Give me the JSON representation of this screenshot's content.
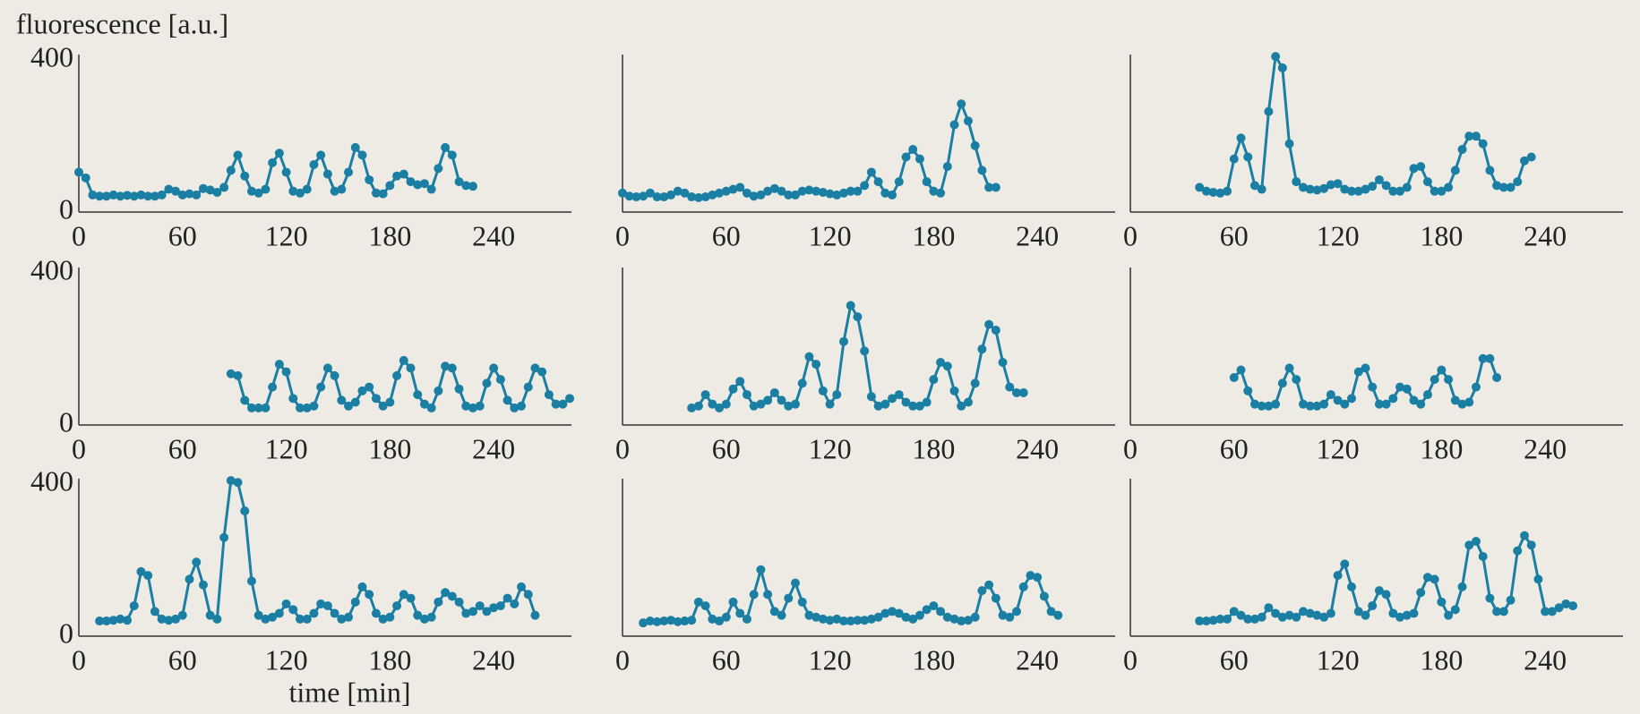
{
  "chart_data": [
    {
      "type": "line",
      "ylabel": "fluorescence [a.u.]",
      "color": "#1a7fa3",
      "xlim": [
        0,
        285
      ],
      "ylim": [
        0,
        415
      ],
      "xticks": [
        0,
        60,
        120,
        180,
        240
      ],
      "yticks": [
        0,
        400
      ],
      "x": [
        0,
        4,
        8,
        12,
        16,
        20,
        24,
        28,
        32,
        36,
        40,
        44,
        48,
        52,
        56,
        60,
        64,
        68,
        72,
        76,
        80,
        84,
        88,
        92,
        96,
        100,
        104,
        108,
        112,
        116,
        120,
        124,
        128,
        132,
        136,
        140,
        144,
        148,
        152,
        156,
        160,
        164,
        168,
        172,
        176,
        180,
        184,
        188,
        192,
        196,
        200,
        204,
        208,
        212,
        216,
        220,
        224,
        228
      ],
      "values": [
        105,
        90,
        45,
        42,
        42,
        45,
        42,
        44,
        42,
        45,
        42,
        42,
        45,
        60,
        55,
        45,
        48,
        45,
        62,
        58,
        52,
        65,
        110,
        150,
        95,
        55,
        50,
        60,
        130,
        155,
        105,
        55,
        50,
        60,
        125,
        150,
        100,
        55,
        60,
        105,
        170,
        150,
        85,
        50,
        48,
        70,
        95,
        100,
        80,
        72,
        75,
        60,
        115,
        170,
        150,
        80,
        70,
        68
      ]
    },
    {
      "type": "line",
      "color": "#1a7fa3",
      "xlim": [
        0,
        285
      ],
      "ylim": [
        0,
        415
      ],
      "xticks": [
        0,
        60,
        120,
        180,
        240
      ],
      "x": [
        0,
        4,
        8,
        12,
        16,
        20,
        24,
        28,
        32,
        36,
        40,
        44,
        48,
        52,
        56,
        60,
        64,
        68,
        72,
        76,
        80,
        84,
        88,
        92,
        96,
        100,
        104,
        108,
        112,
        116,
        120,
        124,
        128,
        132,
        136,
        140,
        144,
        148,
        152,
        156,
        160,
        164,
        168,
        172,
        176,
        180,
        184,
        188,
        192,
        196,
        200,
        204,
        208,
        212,
        216
      ],
      "values": [
        50,
        42,
        40,
        42,
        50,
        40,
        40,
        45,
        55,
        50,
        40,
        38,
        40,
        45,
        50,
        55,
        60,
        65,
        50,
        42,
        45,
        55,
        62,
        55,
        45,
        45,
        55,
        58,
        55,
        52,
        48,
        45,
        50,
        55,
        55,
        70,
        105,
        80,
        50,
        45,
        80,
        145,
        165,
        140,
        80,
        55,
        50,
        120,
        230,
        285,
        240,
        175,
        110,
        65,
        65
      ]
    },
    {
      "type": "line",
      "color": "#1a7fa3",
      "xlim": [
        0,
        285
      ],
      "ylim": [
        0,
        415
      ],
      "xticks": [
        0,
        60,
        120,
        180,
        240
      ],
      "x": [
        40,
        44,
        48,
        52,
        56,
        60,
        64,
        68,
        72,
        76,
        80,
        84,
        88,
        92,
        96,
        100,
        104,
        108,
        112,
        116,
        120,
        124,
        128,
        132,
        136,
        140,
        144,
        148,
        152,
        156,
        160,
        164,
        168,
        172,
        176,
        180,
        184,
        188,
        192,
        196,
        200,
        204,
        208,
        212,
        216,
        220,
        224,
        228,
        232
      ],
      "values": [
        65,
        55,
        52,
        50,
        55,
        140,
        195,
        145,
        70,
        60,
        265,
        410,
        380,
        180,
        80,
        65,
        60,
        58,
        62,
        72,
        75,
        60,
        55,
        55,
        60,
        68,
        85,
        70,
        55,
        55,
        65,
        115,
        120,
        80,
        55,
        55,
        65,
        110,
        165,
        200,
        200,
        180,
        110,
        70,
        65,
        65,
        80,
        135,
        145
      ]
    },
    {
      "type": "line",
      "color": "#1a7fa3",
      "xlim": [
        0,
        285
      ],
      "ylim": [
        0,
        415
      ],
      "xticks": [
        0,
        60,
        120,
        180,
        240
      ],
      "yticks": [
        0,
        400
      ],
      "x": [
        88,
        92,
        96,
        100,
        104,
        108,
        112,
        116,
        120,
        124,
        128,
        132,
        136,
        140,
        144,
        148,
        152,
        156,
        160,
        164,
        168,
        172,
        176,
        180,
        184,
        188,
        192,
        196,
        200,
        204,
        208,
        212,
        216,
        220,
        224,
        228,
        232,
        236,
        240,
        244,
        248,
        252,
        256,
        260,
        264,
        268,
        272,
        276,
        280,
        284
      ],
      "values": [
        135,
        130,
        65,
        45,
        45,
        45,
        100,
        160,
        140,
        70,
        45,
        45,
        50,
        100,
        150,
        130,
        65,
        50,
        60,
        90,
        100,
        70,
        50,
        60,
        130,
        170,
        150,
        80,
        55,
        45,
        90,
        155,
        150,
        95,
        50,
        45,
        50,
        110,
        150,
        120,
        65,
        45,
        50,
        100,
        150,
        140,
        80,
        55,
        55,
        70
      ]
    },
    {
      "type": "line",
      "color": "#1a7fa3",
      "xlim": [
        0,
        285
      ],
      "ylim": [
        0,
        415
      ],
      "xticks": [
        0,
        60,
        120,
        180,
        240
      ],
      "x": [
        40,
        44,
        48,
        52,
        56,
        60,
        64,
        68,
        72,
        76,
        80,
        84,
        88,
        92,
        96,
        100,
        104,
        108,
        112,
        116,
        120,
        124,
        128,
        132,
        136,
        140,
        144,
        148,
        152,
        156,
        160,
        164,
        168,
        172,
        176,
        180,
        184,
        188,
        192,
        196,
        200,
        204,
        208,
        212,
        216,
        220,
        224,
        228,
        232
      ],
      "values": [
        45,
        50,
        80,
        55,
        45,
        55,
        95,
        115,
        80,
        50,
        55,
        65,
        85,
        65,
        50,
        55,
        110,
        180,
        160,
        90,
        55,
        80,
        220,
        315,
        285,
        195,
        75,
        50,
        55,
        70,
        80,
        60,
        50,
        50,
        60,
        120,
        165,
        155,
        90,
        50,
        60,
        110,
        200,
        265,
        250,
        165,
        100,
        85,
        85
      ]
    },
    {
      "type": "line",
      "color": "#1a7fa3",
      "xlim": [
        0,
        285
      ],
      "ylim": [
        0,
        415
      ],
      "xticks": [
        0,
        60,
        120,
        180,
        240
      ],
      "x": [
        60,
        64,
        68,
        72,
        76,
        80,
        84,
        88,
        92,
        96,
        100,
        104,
        108,
        112,
        116,
        120,
        124,
        128,
        132,
        136,
        140,
        144,
        148,
        152,
        156,
        160,
        164,
        168,
        172,
        176,
        180,
        184,
        188,
        192,
        196,
        200,
        204,
        208,
        212
      ],
      "values": [
        125,
        145,
        90,
        55,
        50,
        50,
        55,
        110,
        150,
        120,
        55,
        50,
        50,
        55,
        80,
        65,
        55,
        70,
        140,
        150,
        100,
        55,
        55,
        70,
        100,
        95,
        65,
        55,
        80,
        120,
        145,
        120,
        65,
        55,
        60,
        100,
        175,
        175,
        125
      ]
    },
    {
      "type": "line",
      "xlabel": "time [min]",
      "color": "#1a7fa3",
      "xlim": [
        0,
        285
      ],
      "ylim": [
        0,
        415
      ],
      "xticks": [
        0,
        60,
        120,
        180,
        240
      ],
      "yticks": [
        0,
        400
      ],
      "x": [
        12,
        16,
        20,
        24,
        28,
        32,
        36,
        40,
        44,
        48,
        52,
        56,
        60,
        64,
        68,
        72,
        76,
        80,
        84,
        88,
        92,
        96,
        100,
        104,
        108,
        112,
        116,
        120,
        124,
        128,
        132,
        136,
        140,
        144,
        148,
        152,
        156,
        160,
        164,
        168,
        172,
        176,
        180,
        184,
        188,
        192,
        196,
        200,
        204,
        208,
        212,
        216,
        220,
        224,
        228,
        232,
        236,
        240,
        244,
        248,
        252,
        256,
        260,
        264
      ],
      "values": [
        40,
        40,
        42,
        45,
        42,
        80,
        170,
        160,
        65,
        45,
        42,
        45,
        55,
        150,
        195,
        135,
        55,
        45,
        260,
        410,
        405,
        330,
        145,
        55,
        45,
        50,
        60,
        85,
        70,
        45,
        45,
        60,
        85,
        80,
        60,
        45,
        50,
        90,
        130,
        110,
        60,
        45,
        50,
        80,
        110,
        100,
        55,
        45,
        50,
        90,
        115,
        105,
        90,
        60,
        65,
        80,
        65,
        75,
        80,
        100,
        85,
        130,
        110,
        55
      ]
    },
    {
      "type": "line",
      "color": "#1a7fa3",
      "xlim": [
        0,
        285
      ],
      "ylim": [
        0,
        415
      ],
      "xticks": [
        0,
        60,
        120,
        180,
        240
      ],
      "x": [
        12,
        16,
        20,
        24,
        28,
        32,
        36,
        40,
        44,
        48,
        52,
        56,
        60,
        64,
        68,
        72,
        76,
        80,
        84,
        88,
        92,
        96,
        100,
        104,
        108,
        112,
        116,
        120,
        124,
        128,
        132,
        136,
        140,
        144,
        148,
        152,
        156,
        160,
        164,
        168,
        172,
        176,
        180,
        184,
        188,
        192,
        196,
        200,
        204,
        208,
        212,
        216,
        220,
        224,
        228,
        232,
        236,
        240,
        244,
        248,
        252
      ],
      "values": [
        35,
        40,
        38,
        40,
        42,
        38,
        40,
        42,
        90,
        80,
        45,
        40,
        50,
        90,
        60,
        45,
        110,
        175,
        110,
        65,
        55,
        100,
        140,
        90,
        55,
        50,
        45,
        42,
        45,
        40,
        40,
        42,
        42,
        45,
        50,
        60,
        65,
        60,
        50,
        45,
        55,
        70,
        80,
        65,
        50,
        45,
        40,
        42,
        50,
        120,
        135,
        100,
        55,
        50,
        65,
        130,
        160,
        155,
        105,
        65,
        55
      ]
    },
    {
      "type": "line",
      "color": "#1a7fa3",
      "xlim": [
        0,
        285
      ],
      "ylim": [
        0,
        415
      ],
      "xticks": [
        0,
        60,
        120,
        180,
        240
      ],
      "x": [
        40,
        44,
        48,
        52,
        56,
        60,
        64,
        68,
        72,
        76,
        80,
        84,
        88,
        92,
        96,
        100,
        104,
        108,
        112,
        116,
        120,
        124,
        128,
        132,
        136,
        140,
        144,
        148,
        152,
        156,
        160,
        164,
        168,
        172,
        176,
        180,
        184,
        188,
        192,
        196,
        200,
        204,
        208,
        212,
        216,
        220,
        224,
        228,
        232,
        236,
        240,
        244,
        248,
        252,
        256
      ],
      "values": [
        40,
        40,
        42,
        45,
        45,
        65,
        55,
        45,
        45,
        50,
        75,
        60,
        50,
        55,
        50,
        65,
        60,
        55,
        50,
        60,
        160,
        190,
        130,
        65,
        55,
        80,
        120,
        110,
        60,
        50,
        55,
        60,
        115,
        155,
        150,
        90,
        55,
        70,
        130,
        240,
        250,
        210,
        100,
        65,
        65,
        95,
        225,
        265,
        240,
        150,
        65,
        65,
        75,
        85,
        80
      ]
    }
  ]
}
